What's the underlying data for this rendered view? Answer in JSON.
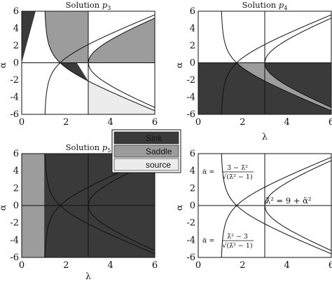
{
  "colors": {
    "sink": "#3a3a3a",
    "saddle": "#9c9c9c",
    "source": "#ececec",
    "line": "#111111"
  },
  "legend": {
    "placement": "center",
    "entries": [
      {
        "label": "Sink",
        "color": "#3a3a3a"
      },
      {
        "label": "Saddle",
        "color": "#9c9c9c"
      },
      {
        "label": "source",
        "color": "#ececec"
      }
    ]
  },
  "chart_data": [
    {
      "type": "area",
      "title_prefix": "Solution ",
      "title_var": "p",
      "title_sub": "3",
      "xlabel": "",
      "ylabel": "α",
      "xlim": [
        0,
        6
      ],
      "ylim": [
        -6,
        6
      ],
      "xticks": [
        0,
        2,
        4,
        6
      ],
      "yticks": [
        6,
        4,
        2,
        0,
        -2,
        -4,
        -6
      ],
      "regions": [
        {
          "name": "Sink",
          "description": "λ < 3, α > 0, left of upper stability curve"
        },
        {
          "name": "Saddle",
          "description": "λ < 3, α > 0, right of upper stability curve"
        },
        {
          "name": "Saddle",
          "description": "λ > 3, between α = 0 and the curve λ² = 9 + α², α > 0"
        },
        {
          "name": "source",
          "description": "λ > 3, below lower stability curve"
        }
      ],
      "lines": [
        "α = (3 − λ²)/√(λ² − 1)",
        "α = (λ² − 3)/√(λ² − 1)",
        "λ² = 9 + α²",
        "λ = 3",
        "α = 0"
      ]
    },
    {
      "type": "area",
      "title_prefix": "Solution ",
      "title_var": "p",
      "title_sub": "4",
      "xlabel": "λ",
      "ylabel": "α",
      "xlim": [
        0,
        6
      ],
      "ylim": [
        -6,
        6
      ],
      "xticks": [
        0,
        2,
        4,
        6
      ],
      "yticks": [
        6,
        4,
        2,
        0,
        -2,
        -4,
        -6
      ],
      "regions": [
        {
          "name": "Sink",
          "description": "α < 0, below upper stability curve"
        },
        {
          "name": "Saddle",
          "description": "α < 0, between stability curve and α = 0"
        },
        {
          "name": "Sink",
          "description": "λ > 3, α < 0, below the curve λ² = 9 + α²"
        }
      ],
      "lines": [
        "α = (3 − λ²)/√(λ² − 1)",
        "α = (λ² − 3)/√(λ² − 1)",
        "λ² = 9 + α²",
        "λ = 3",
        "α = 0"
      ]
    },
    {
      "type": "area",
      "title_prefix": "Solution ",
      "title_var": "p",
      "title_sub": "5",
      "xlabel": "λ",
      "ylabel": "α",
      "xlim": [
        0,
        6
      ],
      "ylim": [
        -6,
        6
      ],
      "xticks": [
        0,
        2,
        4,
        6
      ],
      "yticks": [
        6,
        4,
        2,
        0,
        -2,
        -4,
        -6
      ],
      "regions": [
        {
          "name": "Saddle",
          "description": "outside the parabola-like region"
        },
        {
          "name": "Sink",
          "description": "between the upper and lower stability curves, to the right"
        }
      ],
      "lines": [
        "α = (3 − λ²)/√(λ² − 1)",
        "α = (λ² − 3)/√(λ² − 1)",
        "λ² = 9 + α²",
        "λ = 3",
        "α = 0"
      ]
    },
    {
      "type": "line",
      "title_prefix": "",
      "title_var": "",
      "title_sub": "",
      "xlabel": "",
      "ylabel": "α",
      "xlim": [
        0,
        6
      ],
      "ylim": [
        -6,
        6
      ],
      "xticks": [
        0,
        2,
        4,
        6
      ],
      "yticks": [
        6,
        4,
        2,
        0,
        -2,
        -4,
        -6
      ],
      "series": [
        {
          "expr": "α = (3 − λ²)/√(λ² − 1)"
        },
        {
          "expr": "α = (λ² − 3)/√(λ² − 1)"
        },
        {
          "expr": "λ² = 9 + α²"
        }
      ],
      "annotations": {
        "upper": {
          "lhs": "ᾱ =",
          "num": "3 − λ̄²",
          "den": "√(λ̄² − 1)"
        },
        "lower": {
          "lhs": "ᾱ =",
          "num": "λ̄² − 3",
          "den": "√(λ̄² − 1)"
        },
        "hyperbola": "λ̄² = 9 + ᾱ²"
      }
    }
  ]
}
